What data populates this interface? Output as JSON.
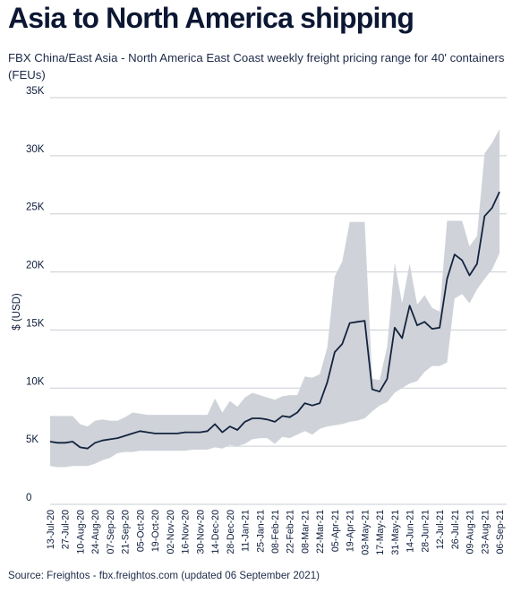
{
  "title": "Asia to North America shipping",
  "subtitle": "FBX China/East Asia - North America East Coast weekly freight pricing range for 40' containers (FEUs)",
  "source": "Source: Freightos - fbx.freightos.com (updated 06 September 2021)",
  "colors": {
    "line": "#14233f",
    "band": "#cfd3d9",
    "grid": "#c9cdd3",
    "text": "#0d1c3a"
  },
  "chart_data": {
    "type": "line",
    "title": "Asia to North America shipping",
    "subtitle": "FBX China/East Asia - North America East Coast weekly freight pricing range for 40' containers (FEUs)",
    "xlabel": "",
    "ylabel": "$ (USD)",
    "ylim": [
      0,
      35000
    ],
    "yticks": [
      0,
      5000,
      10000,
      15000,
      20000,
      25000,
      30000,
      35000
    ],
    "ytick_labels": [
      "0",
      "5K",
      "10K",
      "15K",
      "20K",
      "25K",
      "30K",
      "35K"
    ],
    "grid": true,
    "xtick_labels": [
      "13-Jul-20",
      "27-Jul-20",
      "10-Aug-20",
      "24-Aug-20",
      "07-Sep-20",
      "21-Sep-20",
      "05-Oct-20",
      "19-Oct-20",
      "02-Nov-20",
      "16-Nov-20",
      "30-Nov-20",
      "14-Dec-20",
      "28-Dec-20",
      "11-Jan-21",
      "25-Jan-21",
      "08-Feb-21",
      "22-Feb-21",
      "08-Mar-21",
      "22-Mar-21",
      "05-Apr-21",
      "19-Apr-21",
      "03-May-21",
      "17-May-21",
      "31-May-21",
      "14-Jun-21",
      "28-Jun-21",
      "12-Jul-21",
      "26-Jul-21",
      "09-Aug-21",
      "23-Aug-21",
      "06-Sep-21"
    ],
    "x": [
      "13-Jul-20",
      "20-Jul-20",
      "27-Jul-20",
      "03-Aug-20",
      "10-Aug-20",
      "17-Aug-20",
      "24-Aug-20",
      "31-Aug-20",
      "07-Sep-20",
      "14-Sep-20",
      "21-Sep-20",
      "28-Sep-20",
      "05-Oct-20",
      "12-Oct-20",
      "19-Oct-20",
      "26-Oct-20",
      "02-Nov-20",
      "09-Nov-20",
      "16-Nov-20",
      "23-Nov-20",
      "30-Nov-20",
      "07-Dec-20",
      "14-Dec-20",
      "21-Dec-20",
      "28-Dec-20",
      "04-Jan-21",
      "11-Jan-21",
      "18-Jan-21",
      "25-Jan-21",
      "01-Feb-21",
      "08-Feb-21",
      "15-Feb-21",
      "22-Feb-21",
      "01-Mar-21",
      "08-Mar-21",
      "15-Mar-21",
      "22-Mar-21",
      "29-Mar-21",
      "05-Apr-21",
      "12-Apr-21",
      "19-Apr-21",
      "26-Apr-21",
      "03-May-21",
      "10-May-21",
      "17-May-21",
      "24-May-21",
      "31-May-21",
      "07-Jun-21",
      "14-Jun-21",
      "21-Jun-21",
      "28-Jun-21",
      "05-Jul-21",
      "12-Jul-21",
      "19-Jul-21",
      "26-Jul-21",
      "02-Aug-21",
      "09-Aug-21",
      "16-Aug-21",
      "23-Aug-21",
      "30-Aug-21",
      "06-Sep-21"
    ],
    "series": [
      {
        "role": "price",
        "values": [
          5400,
          5300,
          5300,
          5400,
          4900,
          4800,
          5300,
          5500,
          5600,
          5700,
          5900,
          6100,
          6300,
          6200,
          6100,
          6100,
          6100,
          6100,
          6200,
          6200,
          6200,
          6300,
          6900,
          6200,
          6700,
          6400,
          7100,
          7400,
          7400,
          7300,
          7100,
          7600,
          7500,
          7900,
          8700,
          8500,
          8700,
          10500,
          13100,
          13800,
          15600,
          15700,
          15800,
          9900,
          9700,
          10800,
          15200,
          14300,
          17100,
          15400,
          15700,
          15100,
          15200,
          19400,
          21500,
          21000,
          19700,
          20700,
          24800,
          25500,
          26900
        ]
      },
      {
        "role": "range-high",
        "values": [
          7600,
          7600,
          7600,
          7600,
          6900,
          6700,
          7200,
          7300,
          7200,
          7200,
          7500,
          7900,
          7800,
          7700,
          7700,
          7700,
          7700,
          7700,
          7700,
          7700,
          7700,
          7700,
          9100,
          7900,
          8900,
          8400,
          9200,
          9600,
          9400,
          9200,
          9000,
          9300,
          9400,
          9400,
          11000,
          10900,
          11200,
          13500,
          19600,
          20900,
          24300,
          24300,
          24300,
          10800,
          10700,
          13600,
          20800,
          17300,
          20700,
          17200,
          18000,
          16900,
          16600,
          24400,
          24400,
          24400,
          22200,
          23100,
          30200,
          31100,
          32300
        ]
      },
      {
        "role": "range-low",
        "values": [
          3300,
          3200,
          3200,
          3300,
          3300,
          3300,
          3500,
          3800,
          4000,
          4400,
          4500,
          4500,
          4600,
          4600,
          4600,
          4600,
          4600,
          4600,
          4600,
          4700,
          4700,
          4700,
          4900,
          4800,
          5100,
          5000,
          5200,
          5600,
          5700,
          5700,
          5200,
          5800,
          5700,
          6000,
          6300,
          6000,
          6500,
          6700,
          6800,
          6900,
          7100,
          7200,
          7400,
          8000,
          8500,
          8800,
          9600,
          10000,
          10400,
          10600,
          11400,
          11900,
          11900,
          12200,
          17700,
          18100,
          17300,
          18500,
          19400,
          20200,
          21600
        ]
      }
    ]
  }
}
